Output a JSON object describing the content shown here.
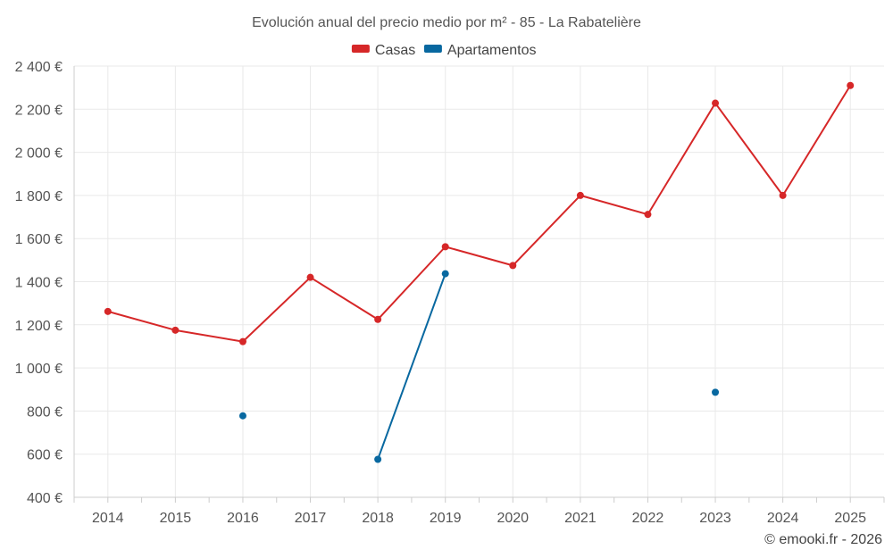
{
  "chart_data": {
    "type": "line",
    "title": "Evolución anual del precio medio por m² - 85 - La Rabatelière",
    "categories": [
      "2014",
      "2015",
      "2016",
      "2017",
      "2018",
      "2019",
      "2020",
      "2021",
      "2022",
      "2023",
      "2024",
      "2025"
    ],
    "series": [
      {
        "name": "Casas",
        "color": "#d62728",
        "values": [
          1262,
          1175,
          1122,
          1420,
          1225,
          1562,
          1475,
          1800,
          1712,
          2228,
          1800,
          2310
        ]
      },
      {
        "name": "Apartamentos",
        "color": "#0868a0",
        "values": [
          null,
          null,
          778,
          null,
          576,
          1437,
          null,
          null,
          null,
          887,
          null,
          null
        ]
      }
    ],
    "ylim": [
      400,
      2400
    ],
    "yticks": [
      400,
      600,
      800,
      1000,
      1200,
      1400,
      1600,
      1800,
      2000,
      2200,
      2400
    ],
    "ytick_labels": [
      "400 €",
      "600 €",
      "800 €",
      "1 000 €",
      "1 200 €",
      "1 400 €",
      "1 600 €",
      "1 800 €",
      "2 000 €",
      "2 200 €",
      "2 400 €"
    ],
    "xlabel": "",
    "ylabel": "",
    "grid": true,
    "legend_position": "top-center"
  },
  "credit": "© emooki.fr - 2026"
}
